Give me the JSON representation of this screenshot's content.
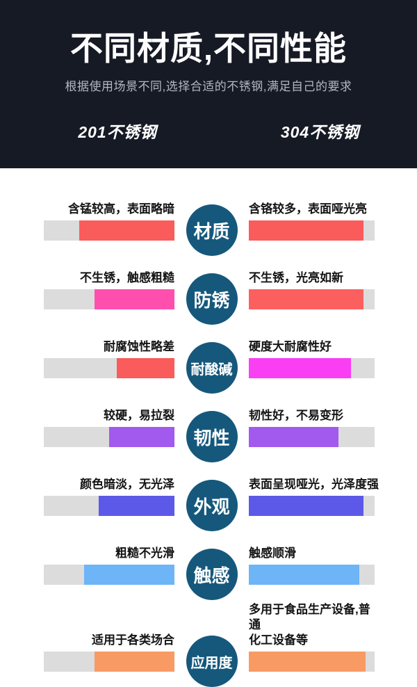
{
  "header": {
    "title": "不同材质,不同性能",
    "subtitle": "根据使用场景不同,选择合适的不锈钢,满足自己的要求",
    "left_column_title": "201不锈钢",
    "right_column_title": "304不锈钢",
    "bg_color": "#161a25"
  },
  "colors": {
    "track_gray": "#dcdcdc",
    "badge_teal": "#15587c",
    "red": "#fa5b5b",
    "salmon": "#fb605f",
    "hot_pink": "#ff4fae",
    "magenta": "#f93ef3",
    "purple": "#a159ee",
    "violet": "#5d59e8",
    "light_blue": "#6db5f7",
    "orange": "#f89a63"
  },
  "rows": [
    {
      "category": "材质",
      "left": {
        "text": "含锰较高，表面略暗",
        "fill": 73,
        "color": "#fa5b5b"
      },
      "right": {
        "text": "含铬较多，表面哑光亮",
        "fill": 91,
        "color": "#fa5b5b"
      }
    },
    {
      "category": "防锈",
      "left": {
        "text": "不生锈，触感粗糙",
        "fill": 61,
        "color": "#ff4fae"
      },
      "right": {
        "text": "不生锈，光亮如新",
        "fill": 91,
        "color": "#fb605f"
      }
    },
    {
      "category": "耐酸碱",
      "left": {
        "text": "耐腐蚀性略差",
        "fill": 44,
        "color": "#fa5b5b"
      },
      "right": {
        "text": "硬度大耐腐性好",
        "fill": 81,
        "color": "#f93ef3"
      }
    },
    {
      "category": "韧性",
      "left": {
        "text": "较硬，易拉裂",
        "fill": 50,
        "color": "#a159ee"
      },
      "right": {
        "text": "韧性好，不易变形",
        "fill": 71,
        "color": "#a159ee"
      }
    },
    {
      "category": "外观",
      "left": {
        "text": "颜色暗淡，无光泽",
        "fill": 58,
        "color": "#5d59e8"
      },
      "right": {
        "text": "表面呈现哑光，光泽度强",
        "fill": 91,
        "color": "#5d59e8"
      }
    },
    {
      "category": "触感",
      "left": {
        "text": "粗糙不光滑",
        "fill": 69,
        "color": "#6db5f7"
      },
      "right": {
        "text": "触感顺滑",
        "fill": 88,
        "color": "#6db5f7"
      }
    },
    {
      "category": "应用度",
      "left": {
        "text": "适用于各类场合",
        "fill": 61,
        "color": "#f89a63"
      },
      "right": {
        "text": "多用于食品生产设备,普通\n化工设备等",
        "fill": 93,
        "color": "#f89a63"
      }
    }
  ],
  "chart_data": {
    "type": "bar",
    "title": "不同材质,不同性能",
    "subtitle": "根据使用场景不同,选择合适的不锈钢,满足自己的要求",
    "categories": [
      "材质",
      "防锈",
      "耐酸碱",
      "韧性",
      "外观",
      "触感",
      "应用度"
    ],
    "series": [
      {
        "name": "201不锈钢",
        "values": [
          73,
          61,
          44,
          50,
          58,
          69,
          61
        ],
        "notes": [
          "含锰较高，表面略暗",
          "不生锈，触感粗糙",
          "耐腐蚀性略差",
          "较硬，易拉裂",
          "颜色暗淡，无光泽",
          "粗糙不光滑",
          "适用于各类场合"
        ]
      },
      {
        "name": "304不锈钢",
        "values": [
          91,
          91,
          81,
          71,
          91,
          88,
          93
        ],
        "notes": [
          "含铬较多，表面哑光亮",
          "不生锈，光亮如新",
          "硬度大耐腐性好",
          "韧性好，不易变形",
          "表面呈现哑光，光泽度强",
          "触感顺滑",
          "多用于食品生产设备,普通化工设备等"
        ]
      }
    ],
    "value_unit": "% of bar track filled (estimated from pixels)",
    "ylim": [
      0,
      100
    ],
    "legend_position": "column headers",
    "grid": false
  }
}
